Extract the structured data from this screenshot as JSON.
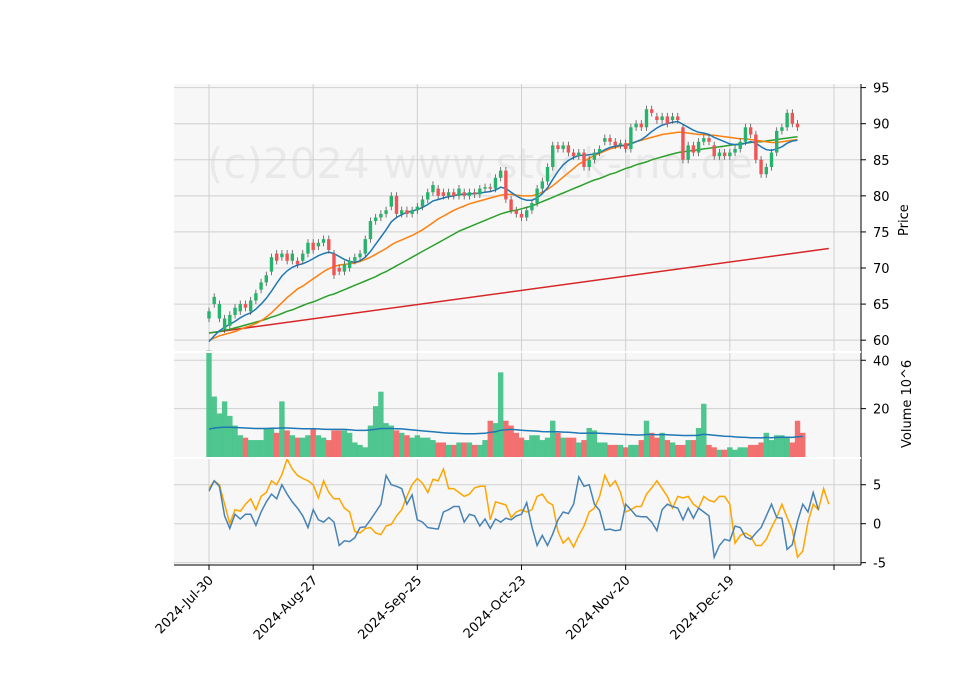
{
  "chart_data": {
    "type": "candlestick",
    "watermark": "(c)2024 www.stock-ind.de",
    "x_tick_labels": [
      "2024-Jul-30",
      "2024-Aug-27",
      "2024-Sep-25",
      "2024-Oct-23",
      "2024-Nov-20",
      "2024-Dec-19"
    ],
    "x_tick_index": [
      0,
      20,
      40,
      60,
      80,
      100,
      120
    ],
    "price_panel": {
      "ylabel": "Price",
      "yticks": [
        60,
        65,
        70,
        75,
        80,
        85,
        90,
        95
      ],
      "ylim": [
        58.5,
        95.5
      ],
      "candles": [
        [
          63,
          64
        ],
        [
          65,
          66
        ],
        [
          63,
          65
        ],
        [
          61.5,
          63
        ],
        [
          62,
          63.5
        ],
        [
          63.5,
          64.5
        ],
        [
          64,
          65
        ],
        [
          65,
          64.5
        ],
        [
          64,
          65.5
        ],
        [
          65.5,
          66.5
        ],
        [
          67,
          68
        ],
        [
          68,
          69
        ],
        [
          69.5,
          71.5
        ],
        [
          72,
          71
        ],
        [
          71.5,
          72
        ],
        [
          72,
          71
        ],
        [
          71,
          72
        ],
        [
          71,
          70.5
        ],
        [
          71,
          72
        ],
        [
          72,
          73.5
        ],
        [
          73.5,
          72.5
        ],
        [
          73,
          73.5
        ],
        [
          73.5,
          74
        ],
        [
          74,
          72.5
        ],
        [
          72,
          69
        ],
        [
          70,
          69.5
        ],
        [
          69.5,
          70.5
        ],
        [
          70,
          71
        ],
        [
          71,
          71.5
        ],
        [
          71.5,
          72
        ],
        [
          72,
          74
        ],
        [
          74,
          76.5
        ],
        [
          76.5,
          77
        ],
        [
          77,
          77.5
        ],
        [
          77.5,
          78
        ],
        [
          78.5,
          80
        ],
        [
          80,
          77.5
        ],
        [
          77.5,
          78
        ],
        [
          78,
          77.5
        ],
        [
          77.5,
          78
        ],
        [
          78,
          78.5
        ],
        [
          78.5,
          79.5
        ],
        [
          79.5,
          80.5
        ],
        [
          80.5,
          81.5
        ],
        [
          81,
          80
        ],
        [
          80.5,
          80
        ],
        [
          80,
          80.5
        ],
        [
          80.5,
          80
        ],
        [
          80,
          81
        ],
        [
          80.5,
          80
        ],
        [
          80,
          80.5
        ],
        [
          80.5,
          80.2
        ],
        [
          80.2,
          81
        ],
        [
          81,
          81.2
        ],
        [
          81.2,
          81
        ],
        [
          81,
          82.5
        ],
        [
          82.5,
          83.5
        ],
        [
          83.5,
          79.5
        ],
        [
          79.5,
          78
        ],
        [
          78,
          77.5
        ],
        [
          77.5,
          77
        ],
        [
          77,
          78
        ],
        [
          78,
          79
        ],
        [
          79,
          81
        ],
        [
          81,
          82
        ],
        [
          82,
          84
        ],
        [
          84,
          87
        ],
        [
          87,
          86.5
        ],
        [
          86.5,
          87
        ],
        [
          87,
          86
        ],
        [
          86,
          85.5
        ],
        [
          85.5,
          86
        ],
        [
          86,
          84
        ],
        [
          84,
          85
        ],
        [
          85,
          86
        ],
        [
          86,
          86.5
        ],
        [
          87.5,
          88
        ],
        [
          88,
          87.5
        ],
        [
          87.5,
          87
        ],
        [
          87,
          87.3
        ],
        [
          87.3,
          86.5
        ],
        [
          86.5,
          89.5
        ],
        [
          89.5,
          90
        ],
        [
          90,
          89.5
        ],
        [
          89.5,
          92
        ],
        [
          92,
          91.5
        ],
        [
          91,
          90.5
        ],
        [
          90.5,
          91
        ],
        [
          91,
          90
        ],
        [
          90.5,
          91
        ],
        [
          91,
          90.5
        ],
        [
          89.5,
          85
        ],
        [
          85,
          87
        ],
        [
          87,
          86
        ],
        [
          86,
          87.5
        ],
        [
          87.5,
          88
        ],
        [
          88,
          87.5
        ],
        [
          87,
          85.5
        ],
        [
          85.5,
          86
        ],
        [
          86,
          85.5
        ],
        [
          85.5,
          86
        ],
        [
          86,
          86.5
        ],
        [
          86.5,
          87.5
        ],
        [
          87.5,
          89.5
        ],
        [
          89.5,
          88.5
        ],
        [
          88.5,
          85
        ],
        [
          85,
          83
        ],
        [
          83,
          84
        ],
        [
          84,
          86
        ],
        [
          86,
          89
        ],
        [
          89,
          89.5
        ],
        [
          89.5,
          91.5
        ],
        [
          91.5,
          90
        ],
        [
          90,
          89.5
        ]
      ],
      "sma_short": [
        59.8,
        60.6,
        61.3,
        61.8,
        62.2,
        62.6,
        63.1,
        63.5,
        63.8,
        64.3,
        65.0,
        65.8,
        66.8,
        67.9,
        68.9,
        69.6,
        70.1,
        70.4,
        70.6,
        70.9,
        71.3,
        71.7,
        72.0,
        72.2,
        72.0,
        71.6,
        71.2,
        70.9,
        70.8,
        71.0,
        71.5,
        72.3,
        73.3,
        74.3,
        75.3,
        76.4,
        77.0,
        77.4,
        77.7,
        77.9,
        78.1,
        78.4,
        78.8,
        79.3,
        79.5,
        79.7,
        79.9,
        80.0,
        80.2,
        80.2,
        80.3,
        80.3,
        80.4,
        80.5,
        80.6,
        80.8,
        81.2,
        81.0,
        80.5,
        80.0,
        79.6,
        79.4,
        79.4,
        79.7,
        80.3,
        81.1,
        82.3,
        83.4,
        84.3,
        84.9,
        85.3,
        85.6,
        85.6,
        85.7,
        85.8,
        86.0,
        86.4,
        86.7,
        86.9,
        87.0,
        86.9,
        87.2,
        87.5,
        87.8,
        88.3,
        88.9,
        89.4,
        89.8,
        90.0,
        90.2,
        90.3,
        89.9,
        89.5,
        89.1,
        88.8,
        88.7,
        88.5,
        88.1,
        87.8,
        87.5,
        87.2,
        87.1,
        87.1,
        87.3,
        87.5,
        87.3,
        86.8,
        86.4,
        86.3,
        86.5,
        86.8,
        87.3,
        87.6,
        87.7
      ],
      "sma_mid": [
        60.0,
        60.3,
        60.6,
        60.8,
        61.0,
        61.2,
        61.5,
        61.8,
        62.0,
        62.3,
        62.7,
        63.2,
        63.8,
        64.5,
        65.2,
        65.9,
        66.5,
        67.1,
        67.5,
        68.0,
        68.5,
        69.0,
        69.5,
        69.9,
        70.2,
        70.4,
        70.5,
        70.6,
        70.7,
        70.9,
        71.2,
        71.5,
        71.9,
        72.3,
        72.7,
        73.2,
        73.6,
        73.9,
        74.2,
        74.5,
        74.9,
        75.3,
        75.8,
        76.3,
        76.8,
        77.2,
        77.6,
        78.0,
        78.3,
        78.6,
        78.9,
        79.1,
        79.3,
        79.5,
        79.7,
        79.9,
        80.1,
        80.2,
        80.2,
        80.1,
        80.0,
        80.0,
        80.0,
        80.2,
        80.5,
        80.9,
        81.4,
        82.0,
        82.6,
        83.2,
        83.8,
        84.4,
        84.8,
        85.2,
        85.6,
        85.9,
        86.2,
        86.5,
        86.7,
        86.9,
        87.1,
        87.3,
        87.5,
        87.7,
        87.9,
        88.1,
        88.3,
        88.5,
        88.6,
        88.7,
        88.8,
        88.8,
        88.7,
        88.6,
        88.5,
        88.5,
        88.4,
        88.4,
        88.3,
        88.2,
        88.1,
        88.0,
        87.9,
        87.9,
        87.8,
        87.7,
        87.6,
        87.5,
        87.4,
        87.4,
        87.5,
        87.6,
        87.7,
        87.8
      ],
      "sma_long": [
        61.0,
        61.1,
        61.2,
        61.4,
        61.5,
        61.7,
        61.9,
        62.1,
        62.3,
        62.5,
        62.7,
        62.9,
        63.2,
        63.4,
        63.7,
        64.0,
        64.2,
        64.5,
        64.8,
        65.1,
        65.3,
        65.6,
        65.9,
        66.2,
        66.4,
        66.7,
        67.0,
        67.3,
        67.6,
        67.9,
        68.2,
        68.5,
        68.8,
        69.2,
        69.5,
        69.9,
        70.3,
        70.7,
        71.1,
        71.5,
        71.9,
        72.3,
        72.7,
        73.1,
        73.5,
        73.9,
        74.3,
        74.7,
        75.1,
        75.4,
        75.7,
        76.0,
        76.3,
        76.6,
        76.9,
        77.2,
        77.5,
        77.7,
        77.9,
        78.0,
        78.2,
        78.4,
        78.6,
        78.9,
        79.2,
        79.5,
        79.8,
        80.1,
        80.4,
        80.7,
        81.0,
        81.3,
        81.6,
        81.9,
        82.2,
        82.4,
        82.7,
        83.0,
        83.2,
        83.5,
        83.8,
        84.0,
        84.3,
        84.5,
        84.7,
        85.0,
        85.2,
        85.4,
        85.6,
        85.8,
        86.0,
        86.1,
        86.2,
        86.3,
        86.4,
        86.5,
        86.6,
        86.7,
        86.8,
        86.9,
        87.0,
        87.1,
        87.2,
        87.3,
        87.4,
        87.5,
        87.5,
        87.6,
        87.7,
        87.8,
        87.9,
        88.0,
        88.1,
        88.2
      ],
      "sma_200_start": 61.0,
      "sma_200_end": 72.7
    },
    "volume_panel": {
      "ylabel": "Volume 10^6",
      "yticks": [
        20,
        40
      ],
      "ylim": [
        0,
        43
      ],
      "values": [
        44,
        25,
        18,
        23,
        17,
        13,
        9,
        8,
        7,
        7,
        7,
        12,
        12,
        10,
        23,
        11,
        9,
        8,
        8,
        9,
        12,
        9,
        8,
        7,
        11,
        11,
        11,
        10,
        6,
        5,
        4,
        13,
        21,
        27,
        14,
        13,
        11,
        10,
        9,
        8,
        9,
        8,
        8,
        7,
        6,
        6,
        5,
        5,
        6,
        6,
        6,
        5,
        5,
        7,
        15,
        14,
        35,
        15,
        13,
        10,
        8,
        7,
        9,
        9,
        7,
        8,
        15,
        10,
        8,
        8,
        8,
        6,
        7,
        12,
        11,
        6,
        6,
        5,
        5,
        5,
        4,
        5,
        5,
        7,
        15,
        10,
        8,
        10,
        7,
        6,
        5,
        5,
        7,
        7,
        12,
        22,
        5,
        4,
        3,
        3,
        4,
        3,
        4,
        4,
        5,
        5,
        6,
        10,
        7,
        9,
        9,
        8,
        6,
        15,
        10
      ],
      "avg": [
        11.5,
        12.0,
        12.2,
        12.3,
        12.3,
        12.2,
        12.1,
        12.0,
        11.9,
        11.8,
        11.8,
        11.8,
        11.9,
        11.9,
        12.0,
        12.0,
        11.9,
        11.8,
        11.7,
        11.7,
        11.7,
        11.6,
        11.5,
        11.4,
        11.4,
        11.4,
        11.4,
        11.3,
        11.1,
        11.0,
        11.0,
        11.2,
        11.5,
        11.8,
        11.8,
        11.8,
        11.7,
        11.6,
        11.4,
        11.2,
        11.0,
        10.8,
        10.6,
        10.4,
        10.2,
        10.0,
        9.9,
        9.8,
        9.7,
        9.6,
        9.6,
        9.6,
        9.7,
        9.8,
        10.2,
        10.4,
        11.1,
        11.3,
        11.4,
        11.3,
        11.1,
        10.9,
        10.8,
        10.7,
        10.5,
        10.4,
        10.5,
        10.4,
        10.3,
        10.2,
        10.1,
        9.9,
        9.8,
        9.9,
        9.9,
        9.8,
        9.7,
        9.6,
        9.5,
        9.4,
        9.3,
        9.2,
        9.1,
        9.1,
        9.3,
        9.3,
        9.2,
        9.3,
        9.2,
        9.1,
        9.0,
        8.9,
        8.9,
        8.9,
        9.0,
        9.4,
        9.2,
        9.0,
        8.8,
        8.6,
        8.5,
        8.3,
        8.2,
        8.1,
        8.0,
        8.0,
        7.9,
        8.1,
        8.0,
        8.1,
        8.2,
        8.2,
        8.1,
        8.4,
        8.5
      ]
    },
    "macd_panel": {
      "yticks": [
        -5,
        0,
        5
      ],
      "ylim": [
        -5.3,
        8.3
      ],
      "macd": [
        4.2,
        5.5,
        4.8,
        1.0,
        -0.6,
        1.2,
        0.6,
        1.2,
        1.2,
        -0.2,
        1.5,
        2.8,
        3.8,
        3.2,
        5.0,
        3.8,
        2.8,
        2.0,
        1.0,
        -0.5,
        1.8,
        0.5,
        0.2,
        0.8,
        0.2,
        -2.8,
        -2.2,
        -2.3,
        -1.8,
        -0.5,
        -0.4,
        0.5,
        1.5,
        2.5,
        6.2,
        5.0,
        4.8,
        4.5,
        2.5,
        3.7,
        0.5,
        0.2,
        -0.5,
        -0.6,
        -0.7,
        1.5,
        1.8,
        2.2,
        2.2,
        0.2,
        1.2,
        1.0,
        -0.3,
        0.6,
        -0.6,
        0.6,
        0.2,
        0.7,
        0.5,
        1.0,
        1.2,
        2.7,
        -0.4,
        -2.8,
        -1.5,
        -2.8,
        -1.3,
        0.5,
        1.5,
        1.3,
        2.5,
        6.0,
        4.8,
        5.0,
        2.5,
        1.7,
        -0.8,
        -0.7,
        -0.9,
        -0.8,
        2.5,
        1.8,
        1.0,
        0.9,
        0.9,
        0.2,
        -0.9,
        1.8,
        2.5,
        2.2,
        2.0,
        0.5,
        2.0,
        0.7,
        2.0,
        1.5,
        1.0,
        -4.3,
        -2.8,
        -2.0,
        -2.2,
        -0.3,
        -0.5,
        -1.7,
        -2.0,
        -1.2,
        -0.5,
        1.0,
        2.5,
        0.8,
        0.7,
        -3.3,
        -2.7,
        0.3,
        2.5,
        1.5,
        4.0,
        1.8
      ],
      "signal": [
        4.5,
        5.5,
        5.0,
        2.5,
        0.0,
        1.8,
        1.6,
        2.5,
        3.2,
        1.8,
        3.5,
        4.0,
        5.5,
        5.0,
        6.3,
        8.3,
        7.0,
        6.2,
        5.8,
        5.5,
        5.0,
        3.3,
        5.5,
        4.0,
        3.2,
        3.2,
        2.0,
        1.5,
        -1.0,
        -1.2,
        -0.6,
        -0.5,
        -1.2,
        -1.4,
        -0.3,
        -0.1,
        1.0,
        1.8,
        3.5,
        5.0,
        5.8,
        5.2,
        4.0,
        5.7,
        5.5,
        7.0,
        4.5,
        4.5,
        4.0,
        3.5,
        3.8,
        4.6,
        4.8,
        4.8,
        0.5,
        2.8,
        2.6,
        2.4,
        0.8,
        1.5,
        1.8,
        1.5,
        1.8,
        3.5,
        3.8,
        2.8,
        2.4,
        -1.0,
        -2.5,
        -1.8,
        -3.0,
        -1.5,
        -0.3,
        1.5,
        2.0,
        3.5,
        6.2,
        4.8,
        5.5,
        4.0,
        1.5,
        1.8,
        2.2,
        2.2,
        3.8,
        4.6,
        5.5,
        4.5,
        3.5,
        2.0,
        3.5,
        3.3,
        3.5,
        2.5,
        2.0,
        3.5,
        3.0,
        2.8,
        3.5,
        3.5,
        2.5,
        -2.5,
        -1.5,
        -1.2,
        -1.6,
        -2.8,
        -2.8,
        -2.0,
        -0.5,
        0.8,
        2.5,
        0.8,
        -0.8,
        -4.3,
        -3.5,
        0.2,
        2.5,
        1.8,
        4.5,
        2.5
      ]
    }
  }
}
